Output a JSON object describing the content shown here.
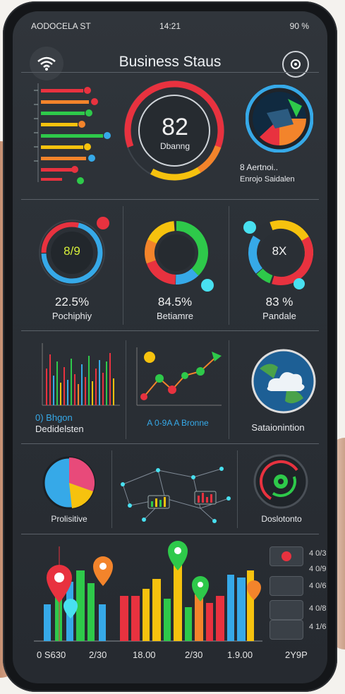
{
  "status": {
    "left": "AODOCELA ST",
    "center": "14:21",
    "right": "90 %"
  },
  "header": {
    "title": "Business Staus",
    "menu_icon": "wifi-icon",
    "action_icon": "gear-icon"
  },
  "row1": {
    "gauge_value": "82",
    "gauge_label": "Dbanng",
    "map_caption_1": "8 Aertnoi..",
    "map_caption_2": "Enrojo Saidalen"
  },
  "row2": {
    "ring1": {
      "center": "8/9",
      "value": "22.5%",
      "label": "Pochiphiy"
    },
    "ring2": {
      "value": "84.5%",
      "label": "Betiamre"
    },
    "ring3": {
      "center": "8X",
      "value": "83 %",
      "label": "Pandale"
    }
  },
  "row3": {
    "left_caption_1": "0) Bhgon",
    "left_caption_2": "Dedidelsten",
    "mid_caption": "A 0-9A A Bronne",
    "right_caption": "Sataionintion"
  },
  "row4": {
    "left_label": "Prolisitive",
    "right_label": "Doslotonto"
  },
  "row5": {
    "ticks": [
      "0 S630",
      "2/30",
      "18.00",
      "2/30",
      "1.9.00",
      "2Y9P"
    ],
    "side_values": [
      "4 0/3",
      "4 0/9",
      "4 0/6",
      "4 0/8",
      "4 1/6"
    ]
  },
  "colors": {
    "red": "#e8323f",
    "blue": "#36a9e8",
    "green": "#2ec94a",
    "yellow": "#f6c20e",
    "orange": "#f3842b"
  }
}
